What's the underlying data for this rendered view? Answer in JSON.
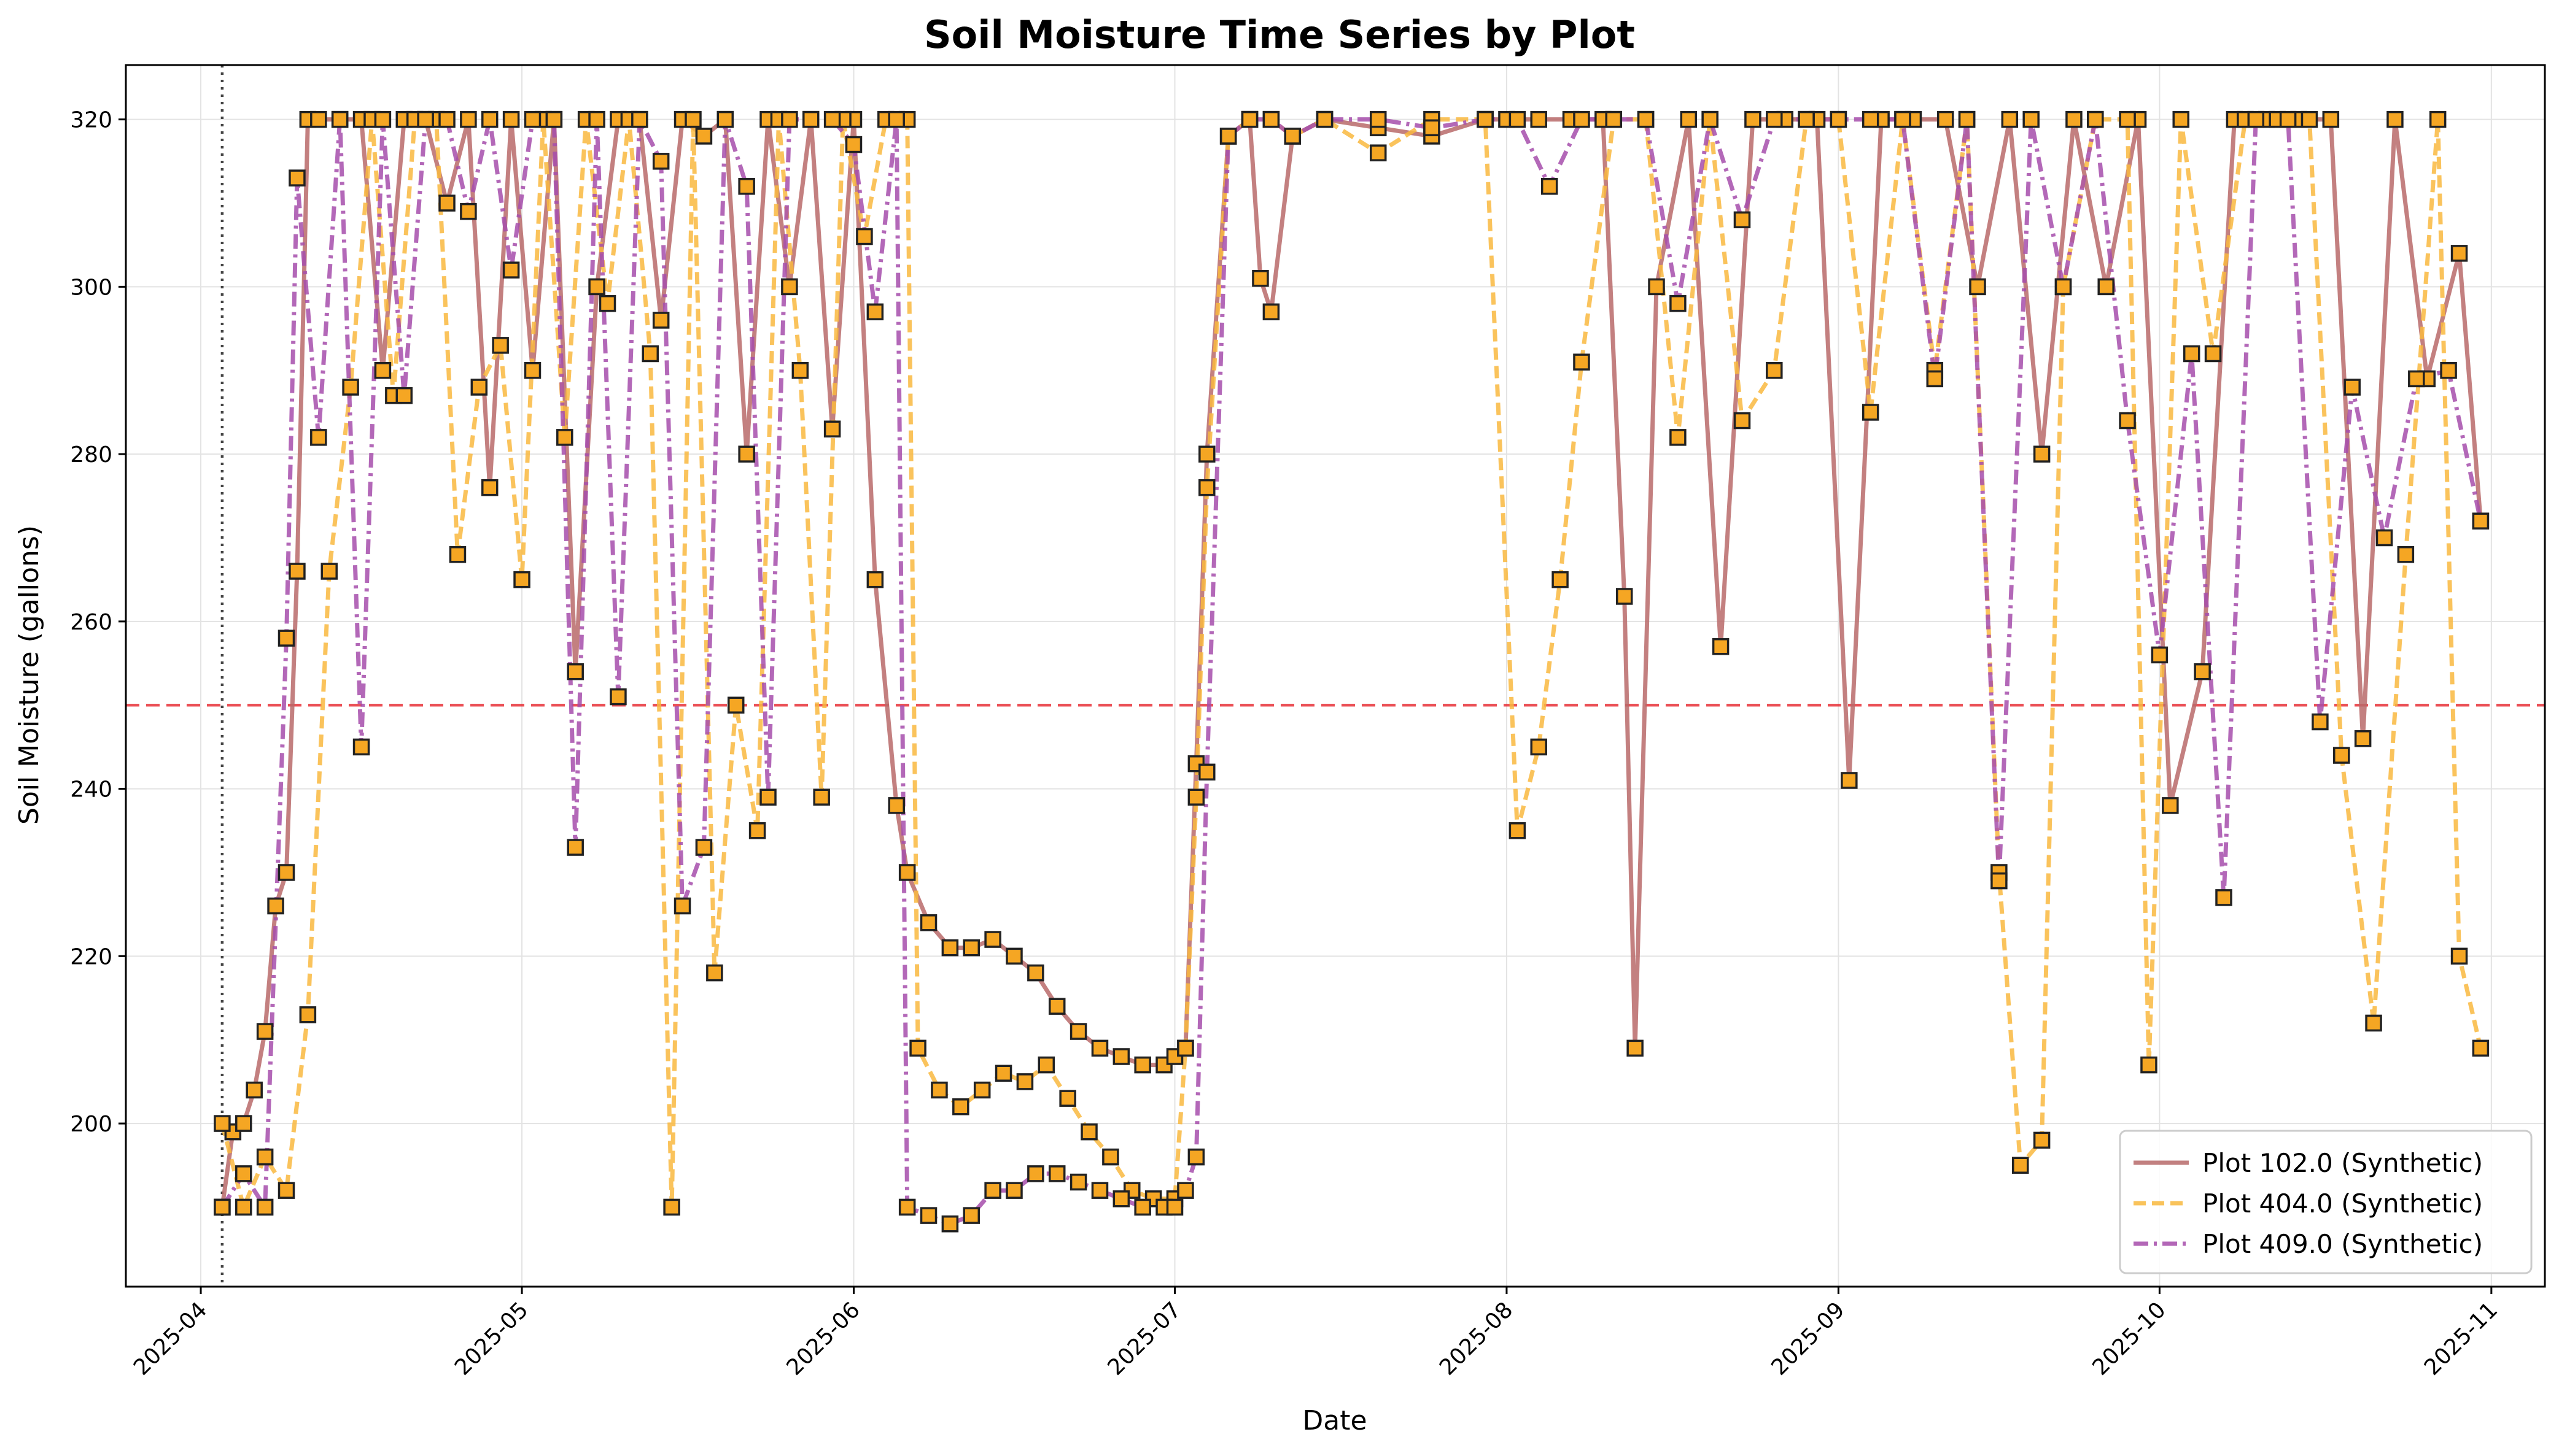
{
  "chart_data": {
    "type": "line",
    "title": "Soil Moisture Time Series by Plot",
    "xlabel": "Date",
    "ylabel": "Soil Moisture (gallons)",
    "x_range": [
      "2025-03-25",
      "2025-11-06"
    ],
    "ylim": [
      180.5,
      326.5
    ],
    "y_ticks": [
      200,
      220,
      240,
      260,
      280,
      300,
      320
    ],
    "x_ticks": [
      "2025-04-01",
      "2025-05-01",
      "2025-06-01",
      "2025-07-01",
      "2025-08-01",
      "2025-09-01",
      "2025-10-01",
      "2025-11-01"
    ],
    "x_tick_labels": [
      "2025-04",
      "2025-05",
      "2025-06",
      "2025-07",
      "2025-08",
      "2025-09",
      "2025-10",
      "2025-11"
    ],
    "grid": true,
    "legend_position": "lower-right",
    "marker": "square",
    "marker_color": "#f5a623",
    "threshold_line": {
      "y": 250,
      "color": "#e8333a",
      "style": "dashed"
    },
    "reference_date_line": {
      "x": "2025-04-03",
      "color": "#444444",
      "style": "dotted"
    },
    "series": [
      {
        "name": "Plot 102.0 (Synthetic)",
        "color": "#b86a6a",
        "dash": "solid",
        "x": [
          "2025-04-03",
          "2025-04-04",
          "2025-04-05",
          "2025-04-06",
          "2025-04-07",
          "2025-04-08",
          "2025-04-09",
          "2025-04-10",
          "2025-04-11",
          "2025-04-12",
          "2025-04-14",
          "2025-04-16",
          "2025-04-18",
          "2025-04-20",
          "2025-04-22",
          "2025-04-24",
          "2025-04-26",
          "2025-04-28",
          "2025-04-30",
          "2025-05-02",
          "2025-05-04",
          "2025-05-06",
          "2025-05-08",
          "2025-05-10",
          "2025-05-12",
          "2025-05-14",
          "2025-05-16",
          "2025-05-18",
          "2025-05-20",
          "2025-05-22",
          "2025-05-24",
          "2025-05-26",
          "2025-05-28",
          "2025-05-30",
          "2025-06-01",
          "2025-06-03",
          "2025-06-05",
          "2025-06-06",
          "2025-06-08",
          "2025-06-10",
          "2025-06-12",
          "2025-06-14",
          "2025-06-16",
          "2025-06-18",
          "2025-06-20",
          "2025-06-22",
          "2025-06-24",
          "2025-06-26",
          "2025-06-28",
          "2025-06-30",
          "2025-07-01",
          "2025-07-02",
          "2025-07-03",
          "2025-07-04",
          "2025-07-06",
          "2025-07-08",
          "2025-07-09",
          "2025-07-10",
          "2025-07-12",
          "2025-07-15",
          "2025-07-20",
          "2025-07-25",
          "2025-07-30",
          "2025-08-01",
          "2025-08-04",
          "2025-08-07",
          "2025-08-10",
          "2025-08-12",
          "2025-08-13",
          "2025-08-15",
          "2025-08-18",
          "2025-08-21",
          "2025-08-24",
          "2025-08-27",
          "2025-08-30",
          "2025-09-02",
          "2025-09-05",
          "2025-09-08",
          "2025-09-11",
          "2025-09-14",
          "2025-09-17",
          "2025-09-20",
          "2025-09-23",
          "2025-09-26",
          "2025-09-29",
          "2025-10-02",
          "2025-10-05",
          "2025-10-08",
          "2025-10-11",
          "2025-10-14",
          "2025-10-17",
          "2025-10-20",
          "2025-10-23",
          "2025-10-26",
          "2025-10-29",
          "2025-10-31"
        ],
        "y": [
          190,
          199,
          200,
          204,
          211,
          226,
          230,
          266,
          320,
          320,
          320,
          320,
          290,
          320,
          320,
          310,
          320,
          276,
          320,
          290,
          320,
          254,
          300,
          320,
          320,
          296,
          320,
          318,
          320,
          280,
          320,
          300,
          320,
          283,
          320,
          265,
          238,
          230,
          224,
          221,
          221,
          222,
          220,
          218,
          214,
          211,
          209,
          208,
          207,
          207,
          208,
          209,
          243,
          280,
          318,
          320,
          301,
          297,
          318,
          320,
          319,
          318,
          320,
          320,
          320,
          320,
          320,
          263,
          209,
          300,
          320,
          257,
          320,
          320,
          320,
          241,
          320,
          320,
          320,
          300,
          320,
          280,
          320,
          300,
          320,
          238,
          254,
          320,
          320,
          320,
          320,
          246,
          320,
          289,
          304,
          272
        ]
      },
      {
        "name": "Plot 404.0 (Synthetic)",
        "color": "#f9b93f",
        "dash": "dashed",
        "x": [
          "2025-04-03",
          "2025-04-05",
          "2025-04-07",
          "2025-04-09",
          "2025-04-11",
          "2025-04-13",
          "2025-04-15",
          "2025-04-17",
          "2025-04-19",
          "2025-04-21",
          "2025-04-23",
          "2025-04-25",
          "2025-04-27",
          "2025-04-29",
          "2025-05-01",
          "2025-05-03",
          "2025-05-05",
          "2025-05-07",
          "2025-05-09",
          "2025-05-11",
          "2025-05-13",
          "2025-05-15",
          "2025-05-17",
          "2025-05-19",
          "2025-05-21",
          "2025-05-23",
          "2025-05-25",
          "2025-05-27",
          "2025-05-29",
          "2025-05-31",
          "2025-06-02",
          "2025-06-04",
          "2025-06-06",
          "2025-06-07",
          "2025-06-09",
          "2025-06-11",
          "2025-06-13",
          "2025-06-15",
          "2025-06-17",
          "2025-06-19",
          "2025-06-21",
          "2025-06-23",
          "2025-06-25",
          "2025-06-27",
          "2025-06-29",
          "2025-07-01",
          "2025-07-02",
          "2025-07-03",
          "2025-07-04",
          "2025-07-06",
          "2025-07-08",
          "2025-07-10",
          "2025-07-12",
          "2025-07-15",
          "2025-07-20",
          "2025-07-25",
          "2025-07-30",
          "2025-08-02",
          "2025-08-04",
          "2025-08-06",
          "2025-08-08",
          "2025-08-11",
          "2025-08-14",
          "2025-08-17",
          "2025-08-20",
          "2025-08-23",
          "2025-08-26",
          "2025-08-29",
          "2025-09-01",
          "2025-09-04",
          "2025-09-07",
          "2025-09-10",
          "2025-09-13",
          "2025-09-16",
          "2025-09-18",
          "2025-09-20",
          "2025-09-22",
          "2025-09-25",
          "2025-09-28",
          "2025-09-30",
          "2025-10-03",
          "2025-10-06",
          "2025-10-09",
          "2025-10-12",
          "2025-10-15",
          "2025-10-18",
          "2025-10-21",
          "2025-10-24",
          "2025-10-27",
          "2025-10-29",
          "2025-10-31"
        ],
        "y": [
          200,
          190,
          196,
          192,
          213,
          266,
          288,
          320,
          287,
          320,
          320,
          268,
          288,
          293,
          265,
          320,
          282,
          320,
          298,
          320,
          292,
          190,
          320,
          218,
          250,
          235,
          320,
          290,
          239,
          320,
          306,
          320,
          320,
          209,
          204,
          202,
          204,
          206,
          205,
          207,
          203,
          199,
          196,
          192,
          191,
          191,
          209,
          239,
          276,
          318,
          320,
          320,
          318,
          320,
          316,
          320,
          320,
          235,
          245,
          265,
          291,
          320,
          320,
          282,
          320,
          284,
          290,
          320,
          320,
          285,
          320,
          290,
          320,
          230,
          195,
          198,
          300,
          320,
          320,
          207,
          320,
          292,
          320,
          320,
          320,
          244,
          212,
          268,
          320,
          220,
          209
        ]
      },
      {
        "name": "Plot 409.0 (Synthetic)",
        "color": "#a64dab",
        "dash": "dashdot",
        "x": [
          "2025-04-03",
          "2025-04-05",
          "2025-04-07",
          "2025-04-09",
          "2025-04-10",
          "2025-04-12",
          "2025-04-14",
          "2025-04-16",
          "2025-04-18",
          "2025-04-20",
          "2025-04-22",
          "2025-04-24",
          "2025-04-26",
          "2025-04-28",
          "2025-04-30",
          "2025-05-02",
          "2025-05-04",
          "2025-05-06",
          "2025-05-08",
          "2025-05-10",
          "2025-05-12",
          "2025-05-14",
          "2025-05-16",
          "2025-05-18",
          "2025-05-20",
          "2025-05-22",
          "2025-05-24",
          "2025-05-26",
          "2025-05-28",
          "2025-05-30",
          "2025-06-01",
          "2025-06-03",
          "2025-06-05",
          "2025-06-06",
          "2025-06-08",
          "2025-06-10",
          "2025-06-12",
          "2025-06-14",
          "2025-06-16",
          "2025-06-18",
          "2025-06-20",
          "2025-06-22",
          "2025-06-24",
          "2025-06-26",
          "2025-06-28",
          "2025-06-30",
          "2025-07-01",
          "2025-07-02",
          "2025-07-03",
          "2025-07-04",
          "2025-07-06",
          "2025-07-08",
          "2025-07-10",
          "2025-07-12",
          "2025-07-15",
          "2025-07-20",
          "2025-07-25",
          "2025-07-30",
          "2025-08-02",
          "2025-08-05",
          "2025-08-08",
          "2025-08-11",
          "2025-08-14",
          "2025-08-17",
          "2025-08-20",
          "2025-08-23",
          "2025-08-26",
          "2025-08-29",
          "2025-09-01",
          "2025-09-04",
          "2025-09-07",
          "2025-09-10",
          "2025-09-13",
          "2025-09-16",
          "2025-09-19",
          "2025-09-22",
          "2025-09-25",
          "2025-09-28",
          "2025-10-01",
          "2025-10-04",
          "2025-10-07",
          "2025-10-10",
          "2025-10-13",
          "2025-10-16",
          "2025-10-19",
          "2025-10-22",
          "2025-10-25",
          "2025-10-28",
          "2025-10-31"
        ],
        "y": [
          190,
          194,
          190,
          258,
          313,
          282,
          320,
          245,
          320,
          287,
          320,
          320,
          309,
          320,
          302,
          320,
          320,
          233,
          320,
          251,
          320,
          315,
          226,
          233,
          320,
          312,
          239,
          320,
          320,
          320,
          317,
          297,
          320,
          190,
          189,
          188,
          189,
          192,
          192,
          194,
          194,
          193,
          192,
          191,
          190,
          190,
          190,
          192,
          196,
          242,
          318,
          320,
          320,
          318,
          320,
          320,
          319,
          320,
          320,
          312,
          320,
          320,
          320,
          298,
          320,
          308,
          320,
          320,
          320,
          320,
          320,
          289,
          320,
          229,
          320,
          300,
          320,
          284,
          256,
          292,
          227,
          320,
          320,
          248,
          288,
          270,
          289,
          290,
          272
        ]
      }
    ]
  }
}
